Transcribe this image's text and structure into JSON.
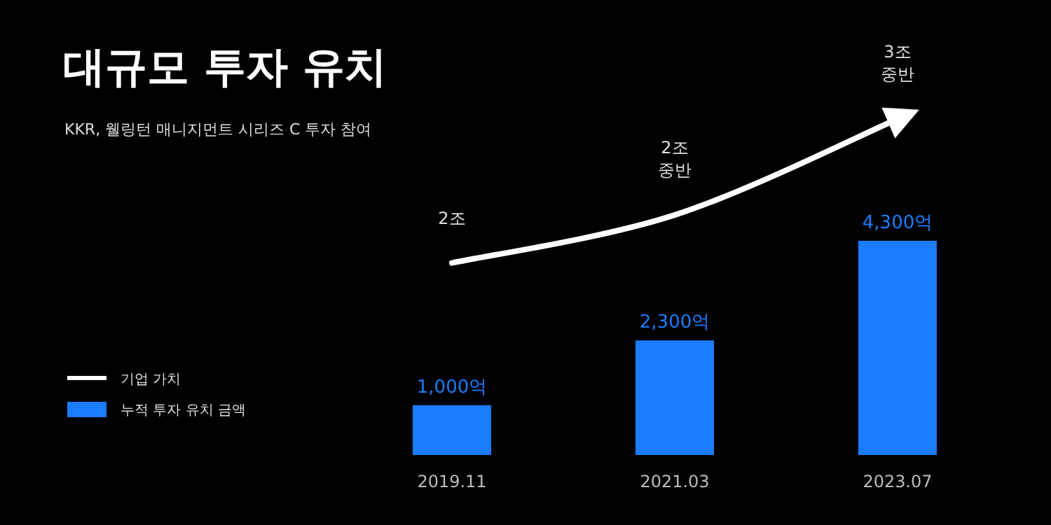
{
  "chart_data": {
    "type": "bar",
    "title": "대규모 투자 유치",
    "subtitle": "KKR, 웰링턴 매니지먼트 시리즈 C 투자 참여",
    "categories": [
      "2019.11",
      "2021.03",
      "2023.07"
    ],
    "legend": "left",
    "series": [
      {
        "name": "기업 가치",
        "type": "line",
        "axis": "y2",
        "color": "#ffffff",
        "values": [
          2,
          2.5,
          3.5
        ],
        "value_labels": [
          "2조",
          "2조 중반",
          "3조 중반"
        ]
      },
      {
        "name": "누적 투자 유치 금액",
        "color": "#1a7cff",
        "values": [
          1000,
          2300,
          4300
        ],
        "value_labels": [
          "1,000억",
          "2,300억",
          "4,300억"
        ]
      }
    ]
  }
}
